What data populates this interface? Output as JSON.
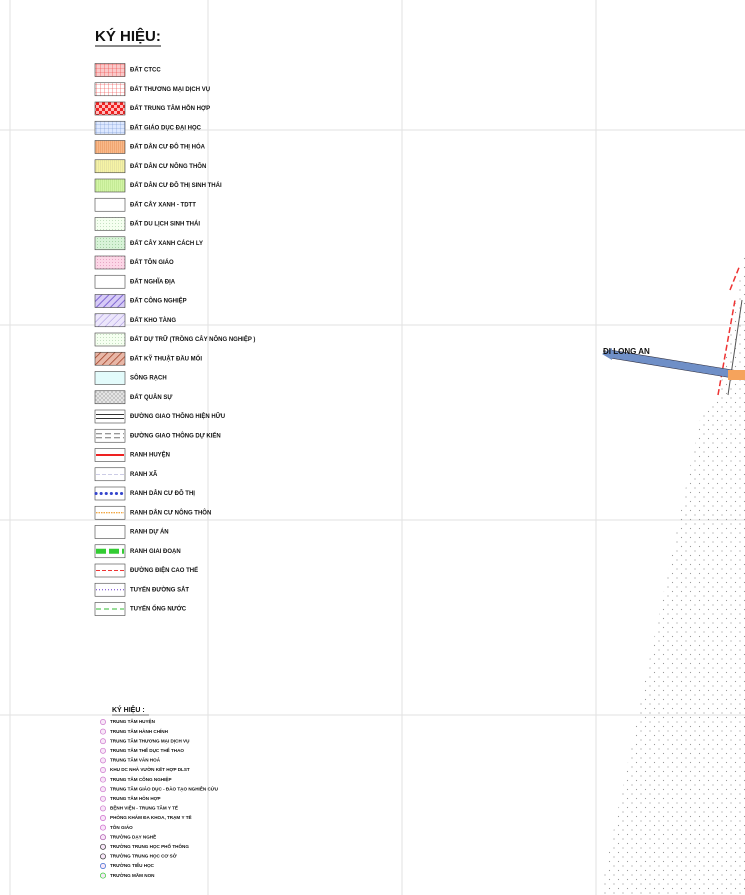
{
  "legend": {
    "title": "KÝ HIỆU:",
    "items": [
      "ĐẤT CTCC",
      "ĐẤT THƯƠNG MẠI DỊCH VỤ",
      "ĐẤT TRUNG TÂM HỖN HỢP",
      "ĐẤT GIÁO DỤC ĐẠI HỌC",
      "ĐẤT DÂN CƯ ĐÔ THỊ HÓA",
      "ĐẤT DÂN CƯ NÔNG THÔN",
      "ĐẤT DÂN CƯ ĐÔ THỊ SINH THÁI",
      "ĐẤT CÂY XANH - TDTT",
      "ĐẤT DU LỊCH SINH THÁI",
      "ĐẤT CÂY XANH CÁCH LY",
      "ĐẤT TÔN GIÁO",
      "ĐẤT NGHĨA ĐỊA",
      "ĐẤT CÔNG NGHIỆP",
      "ĐẤT KHO TÀNG",
      "ĐẤT DỰ TRỮ (TRỒNG CÂY NÔNG NGHIỆP )",
      "ĐẤT KỸ THUẬT ĐẦU MỐI",
      "SÔNG RẠCH",
      "ĐẤT QUÂN SỰ",
      "ĐƯỜNG GIAO THÔNG HIỆN HỮU",
      "ĐƯỜNG GIAO THÔNG DỰ KIẾN",
      "RANH HUYỆN",
      "RANH XÃ",
      "RANH DÂN CƯ ĐÔ THỊ",
      "RANH DÂN CƯ NÔNG THÔN",
      "RANH DỰ ÁN",
      "RANH GIAI ĐOẠN",
      "ĐƯỜNG ĐIỆN CAO THẾ",
      "TUYẾN ĐƯỜNG SẮT",
      "TUYẾN ỐNG NƯỚC"
    ]
  },
  "symbols": {
    "title": "KÝ HIỆU :",
    "items": [
      "TRUNG TÂM HUYỆN",
      "TRUNG TÂM HÀNH CHÍNH",
      "TRUNG TÂM THƯƠNG MẠI DỊCH VỤ",
      "TRUNG TÂM THỂ DỤC THỂ THAO",
      "TRUNG TÂM VĂN HOÁ",
      "KHU DC NHÀ VƯỜN KẾT HỢP DLST",
      "TRUNG TÂM CÔNG NGHIỆP",
      "TRUNG TÂM GIÁO DỤC - ĐÀO TẠO NGHIÊN CỨU",
      "TRUNG TÂM HỖN HỢP",
      "BỆNH VIỆN - TRUNG TÂM Y TẾ",
      "PHÒNG KHÁM ĐA KHOA, TRẠM Y TẾ",
      "TÔN GIÁO",
      "TRƯỜNG DẠY NGHỀ",
      "TRƯỜNG TRUNG HỌC PHỔ THÔNG",
      "TRƯỜNG TRUNG HỌC CƠ SỞ",
      "TRƯỜNG TIỂU HỌC",
      "TRƯỜNG MẦM NON"
    ]
  },
  "map": {
    "label": "ĐI LONG AN"
  }
}
